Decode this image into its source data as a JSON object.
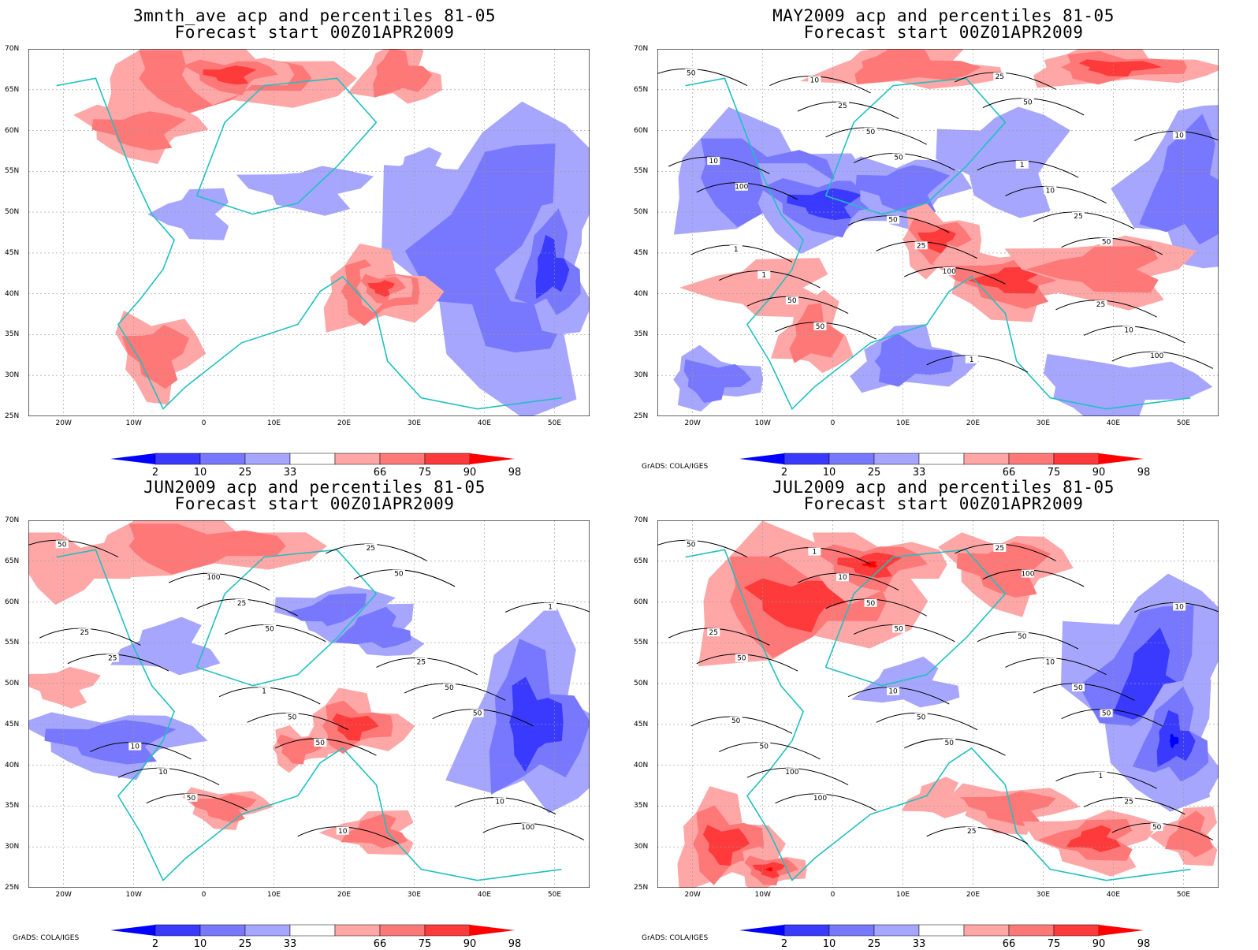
{
  "panels": [
    {
      "title_line1": "3mnth_ave acp and percentiles 81-05",
      "title_line2": "Forecast start 00Z01APR2009",
      "credit": "",
      "anomaly_pattern": "hot_south_cold_east",
      "contours": []
    },
    {
      "title_line1": "MAY2009 acp and percentiles 81-05",
      "title_line2": "Forecast start 00Z01APR2009",
      "credit": "GrADS: COLA/IGES",
      "anomaly_pattern": "cold_north_hot_balkans",
      "contours": [
        "50",
        "50",
        "50",
        "50",
        "50",
        "100",
        "100",
        "100",
        "50",
        "25",
        "50",
        "25",
        "10",
        "25",
        "10",
        "25",
        "10",
        "1",
        "1",
        "10",
        "50",
        "25",
        "10",
        "1",
        "1"
      ]
    },
    {
      "title_line1": "JUN2009 acp and percentiles 81-05",
      "title_line2": "Forecast start 00Z01APR2009",
      "credit": "GrADS: COLA/IGES",
      "anomaly_pattern": "mixed_cold_east",
      "contours": [
        "50",
        "50",
        "50",
        "50",
        "50",
        "25",
        "50",
        "100",
        "25",
        "50",
        "10",
        "25",
        "25",
        "50",
        "10",
        "100",
        "25",
        "10",
        "10",
        "1",
        "1"
      ]
    },
    {
      "title_line1": "JUL2009 acp and percentiles 81-05",
      "title_line2": "Forecast start 00Z01APR2009",
      "credit": "GrADS: COLA/IGES",
      "anomaly_pattern": "hot_northwest_cold_east",
      "contours": [
        "50",
        "50",
        "50",
        "100",
        "100",
        "50",
        "50",
        "50",
        "50",
        "50",
        "100",
        "25",
        "25",
        "50",
        "25",
        "10",
        "10",
        "50",
        "25",
        "10",
        "10",
        "1",
        "1",
        "50",
        "50"
      ]
    }
  ],
  "axes": {
    "y_ticks": [
      "70N",
      "65N",
      "60N",
      "55N",
      "50N",
      "45N",
      "40N",
      "35N",
      "30N",
      "25N"
    ],
    "x_ticks": [
      "20W",
      "10W",
      "0",
      "10E",
      "20E",
      "30E",
      "40E",
      "50E"
    ]
  },
  "colorbar": {
    "labels": [
      "2",
      "10",
      "25",
      "33",
      "66",
      "75",
      "90",
      "98"
    ],
    "colors": [
      "#0000ff",
      "#3a3aff",
      "#7878ff",
      "#a6a6ff",
      "#ffffff",
      "#ffa6a6",
      "#ff7878",
      "#ff3a3a",
      "#ff0000"
    ]
  }
}
